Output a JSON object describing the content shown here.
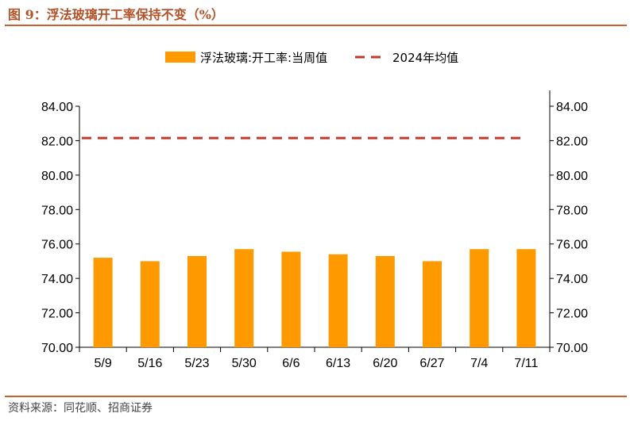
{
  "header": {
    "figure_title": "图 9：浮法玻璃开工率保持不变（%）"
  },
  "footer": {
    "source": "资料来源：同花顺、招商证券"
  },
  "colors": {
    "accent": "#c9602f",
    "bar": "#ff9900",
    "avg_line": "#c0392b"
  },
  "chart_data": {
    "type": "bar",
    "title": "浮法玻璃开工率保持不变（%）",
    "categories": [
      "5/9",
      "5/16",
      "5/23",
      "5/30",
      "6/6",
      "6/13",
      "6/20",
      "6/27",
      "7/4",
      "7/11"
    ],
    "series": [
      {
        "name": "浮法玻璃:开工率:当周值",
        "kind": "bar",
        "values": [
          75.2,
          75.0,
          75.3,
          75.7,
          75.55,
          75.4,
          75.3,
          75.0,
          75.7,
          75.7
        ]
      },
      {
        "name": "2024年均值",
        "kind": "dashed-line",
        "values": [
          82.15,
          82.15,
          82.15,
          82.15,
          82.15,
          82.15,
          82.15,
          82.15,
          82.15,
          82.15
        ]
      }
    ],
    "ylim": [
      70,
      84
    ],
    "yticks": [
      "70.00",
      "72.00",
      "74.00",
      "76.00",
      "78.00",
      "80.00",
      "82.00",
      "84.00"
    ],
    "secondary_yticks": [
      "70.00",
      "72.00",
      "74.00",
      "76.00",
      "78.00",
      "80.00",
      "82.00",
      "84.00"
    ],
    "legend": [
      {
        "label": "浮法玻璃:开工率:当周值",
        "marker": "bar"
      },
      {
        "label": "2024年均值",
        "marker": "dashed-line"
      }
    ],
    "legend_position": "top-center",
    "grid": false
  }
}
